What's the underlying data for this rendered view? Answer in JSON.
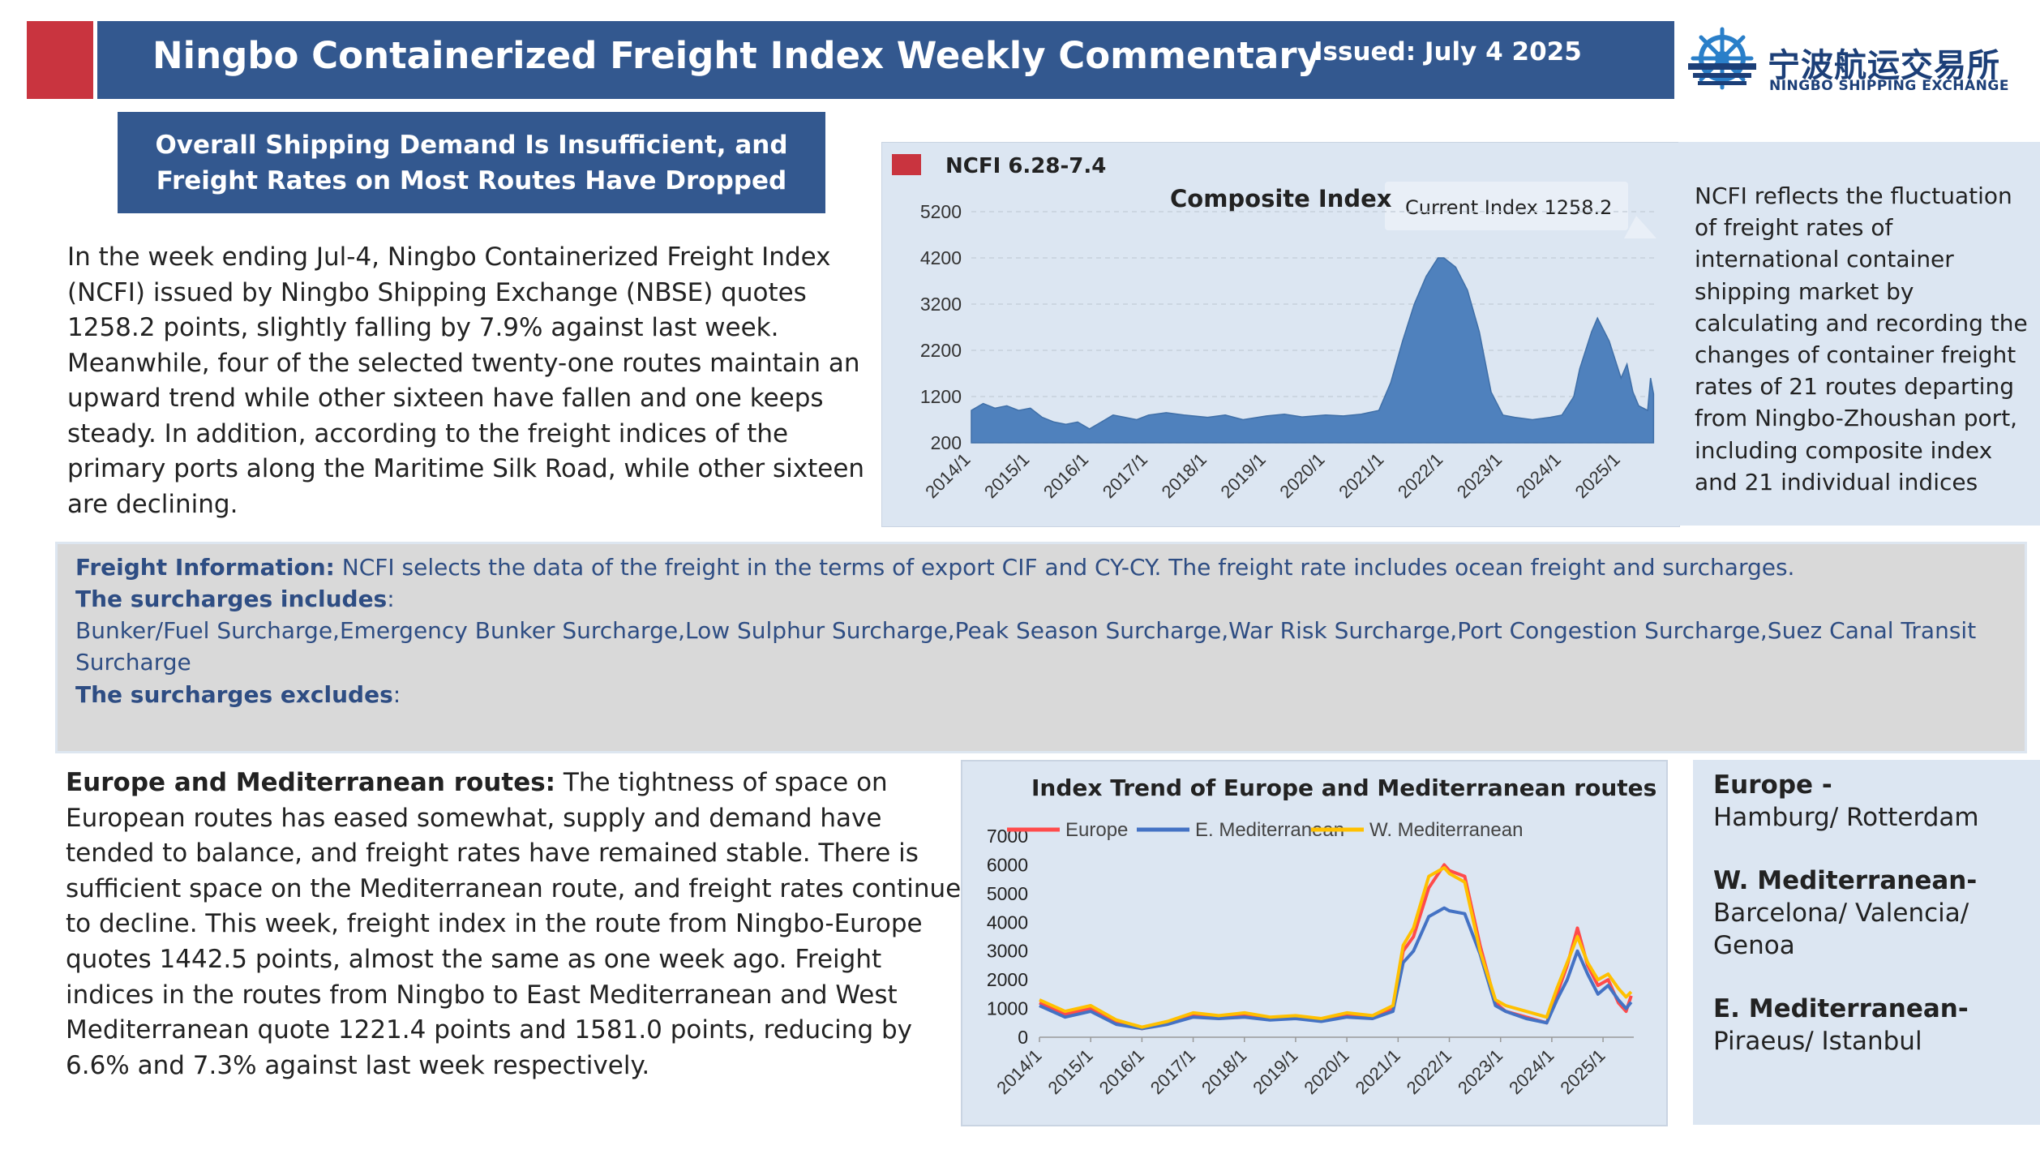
{
  "header": {
    "title": "Ningbo Containerized Freight Index Weekly Commentary",
    "issued": "Issued: July 4 2025",
    "logo_cn": "宁波航运交易所",
    "logo_en": "NINGBO SHIPPING EXCHANGE",
    "accent_color": "#c9343f",
    "bar_color": "#33588f"
  },
  "subtitle": "Overall Shipping Demand Is Insufficient, and Freight Rates on Most Routes Have Dropped",
  "summary": "In the week ending Jul-4, Ningbo Containerized Freight Index (NCFI) issued by Ningbo Shipping Exchange (NBSE) quotes 1258.2 points, slightly falling by 7.9% against last week. Meanwhile, four of the selected twenty-one routes maintain an upward trend while other sixteen have fallen and one keeps steady. In addition, according to the freight indices of the primary ports along the Maritime Silk Road,  while other sixteen are declining.",
  "ncfi_description": "NCFI reflects the fluctuation of freight rates of international container shipping market by calculating and recording the changes of container freight rates of 21 routes departing from Ningbo-Zhoushan port, including composite index and 21 individual indices",
  "freight_info": {
    "label": "Freight Information:",
    "text": " NCFI selects the data of the freight in the terms of export CIF and CY-CY. The freight rate includes ocean freight and surcharges.",
    "includes_label": "The surcharges includes",
    "includes_text_1": "Bunker/Fuel Surcharge,Emergency Bunker Surcharge,Low Sulphur Surcharge,Peak Season Surcharge,War Risk Surcharge,Port Congestion Surcharge,Suez Canal Transit",
    "includes_text_2": "Surcharge",
    "excludes_label": "The surcharges excludes"
  },
  "europe": {
    "heading": "Europe and Mediterranean routes:",
    "text": " The tightness of space on European routes has eased somewhat, supply and demand have tended to balance, and freight rates have remained stable. There is sufficient space on the Mediterranean route, and freight rates continue to decline. This week, freight index in the route from Ningbo-Europe quotes 1442.5 points, almost the same as one week ago. Freight indices in the routes from Ningbo to East Mediterranean and West Mediterranean quote 1221.4 points and 1581.0 points, reducing by 6.6% and 7.3% against last week respectively."
  },
  "routes": {
    "europe_title": "Europe -",
    "europe_ports": "Hamburg/ Rotterdam",
    "wmed_title": "W. Mediterranean-",
    "wmed_ports_1": "Barcelona/ Valencia/",
    "wmed_ports_2": "Genoa",
    "emed_title": "E. Mediterranean-",
    "emed_ports": "Piraeus/ Istanbul"
  },
  "chart_data": [
    {
      "type": "area",
      "legend": "NCFI 6.28-7.4",
      "title": "Composite Index",
      "annotation": "Current Index 1258.2",
      "color": "#4f81bd",
      "legend_color": "#c9343f",
      "x_tick_labels": [
        "2014/1",
        "2015/1",
        "2016/1",
        "2017/1",
        "2018/1",
        "2019/1",
        "2020/1",
        "2021/1",
        "2022/1",
        "2023/1",
        "2024/1",
        "2025/1"
      ],
      "y_ticks": [
        200,
        1200,
        2200,
        3200,
        4200,
        5200
      ],
      "ylim": [
        200,
        5200
      ],
      "x_range": [
        2014.0,
        2025.6
      ],
      "x": [
        2014.0,
        2014.2,
        2014.4,
        2014.6,
        2014.8,
        2015.0,
        2015.2,
        2015.4,
        2015.6,
        2015.8,
        2016.0,
        2016.2,
        2016.4,
        2016.6,
        2016.8,
        2017.0,
        2017.3,
        2017.6,
        2018.0,
        2018.3,
        2018.6,
        2019.0,
        2019.3,
        2019.6,
        2020.0,
        2020.3,
        2020.6,
        2020.9,
        2021.1,
        2021.3,
        2021.5,
        2021.7,
        2021.9,
        2022.0,
        2022.2,
        2022.4,
        2022.6,
        2022.8,
        2023.0,
        2023.2,
        2023.5,
        2023.8,
        2024.0,
        2024.2,
        2024.3,
        2024.5,
        2024.6,
        2024.8,
        2025.0,
        2025.1,
        2025.2,
        2025.3,
        2025.45,
        2025.5,
        2025.55
      ],
      "y": [
        900,
        1050,
        950,
        1000,
        900,
        950,
        750,
        650,
        600,
        650,
        500,
        650,
        800,
        750,
        700,
        800,
        850,
        800,
        750,
        800,
        700,
        780,
        820,
        760,
        800,
        780,
        820,
        900,
        1500,
        2400,
        3200,
        3800,
        4200,
        4200,
        4000,
        3500,
        2600,
        1300,
        800,
        750,
        700,
        750,
        800,
        1200,
        1800,
        2600,
        2900,
        2400,
        1600,
        1900,
        1300,
        1000,
        900,
        1600,
        1258
      ]
    },
    {
      "type": "line",
      "title": "Index Trend of Europe and Mediterranean routes",
      "x_tick_labels": [
        "2014/1",
        "2015/1",
        "2016/1",
        "2017/1",
        "2018/1",
        "2019/1",
        "2020/1",
        "2021/1",
        "2022/1",
        "2023/1",
        "2024/1",
        "2025/1"
      ],
      "y_ticks": [
        0,
        1000,
        2000,
        3000,
        4000,
        5000,
        6000,
        7000
      ],
      "ylim": [
        0,
        7000
      ],
      "x_range": [
        2014.0,
        2025.6
      ],
      "x": [
        2014.0,
        2014.5,
        2015.0,
        2015.5,
        2016.0,
        2016.5,
        2017.0,
        2017.5,
        2018.0,
        2018.5,
        2019.0,
        2019.5,
        2020.0,
        2020.5,
        2020.9,
        2021.1,
        2021.3,
        2021.6,
        2021.9,
        2022.0,
        2022.3,
        2022.6,
        2022.9,
        2023.1,
        2023.5,
        2023.9,
        2024.1,
        2024.3,
        2024.5,
        2024.7,
        2024.9,
        2025.1,
        2025.3,
        2025.45,
        2025.55
      ],
      "series": [
        {
          "name": "Europe",
          "color": "#ff4b4b",
          "values": [
            1200,
            800,
            1000,
            500,
            300,
            500,
            800,
            700,
            800,
            650,
            700,
            600,
            800,
            700,
            1000,
            3000,
            3500,
            5200,
            6000,
            5800,
            5600,
            3200,
            1200,
            900,
            700,
            500,
            1500,
            2500,
            3800,
            2500,
            1800,
            2000,
            1200,
            900,
            1442
          ]
        },
        {
          "name": "E. Mediterranean",
          "color": "#4472c4",
          "values": [
            1100,
            700,
            900,
            450,
            300,
            450,
            700,
            650,
            700,
            600,
            650,
            550,
            700,
            650,
            900,
            2600,
            3000,
            4200,
            4500,
            4400,
            4300,
            2900,
            1100,
            900,
            650,
            500,
            1300,
            2000,
            3000,
            2200,
            1500,
            1800,
            1300,
            1000,
            1221
          ]
        },
        {
          "name": "W. Mediterranean",
          "color": "#ffc000",
          "values": [
            1300,
            900,
            1100,
            600,
            350,
            550,
            850,
            750,
            850,
            700,
            750,
            650,
            850,
            750,
            1100,
            3200,
            3800,
            5600,
            5900,
            5700,
            5400,
            3000,
            1300,
            1100,
            900,
            700,
            1700,
            2600,
            3500,
            2600,
            2000,
            2200,
            1700,
            1400,
            1581
          ]
        }
      ]
    }
  ]
}
